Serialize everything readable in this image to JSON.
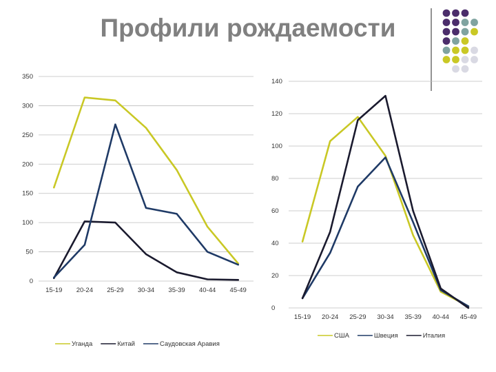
{
  "slide": {
    "title": "Профили рождаемости",
    "decor_colors": [
      "#4b2d6b",
      "#7fa3a0",
      "#c9c825",
      "#d9d9e3"
    ]
  },
  "chart_data": [
    {
      "type": "line",
      "categories": [
        "15-19",
        "20-24",
        "25-29",
        "30-34",
        "35-39",
        "40-44",
        "45-49"
      ],
      "ylim": [
        0,
        350
      ],
      "yticks": [
        "0",
        "50",
        "100",
        "150",
        "200",
        "250",
        "300",
        "350"
      ],
      "grid": true,
      "legend_position": "bottom-left",
      "series": [
        {
          "name": "Уганда",
          "color": "#c9c825",
          "values": [
            160,
            314,
            309,
            262,
            190,
            93,
            30
          ]
        },
        {
          "name": "Китай",
          "color": "#1a1a2e",
          "values": [
            5,
            102,
            100,
            46,
            15,
            3,
            2
          ]
        },
        {
          "name": "Саудовская Аравия",
          "color": "#1f3a66",
          "values": [
            6,
            62,
            268,
            125,
            115,
            50,
            28
          ]
        }
      ]
    },
    {
      "type": "line",
      "categories": [
        "15-19",
        "20-24",
        "25-29",
        "30-34",
        "35-39",
        "40-44",
        "45-49"
      ],
      "ylim": [
        0,
        140
      ],
      "yticks": [
        "0",
        "20",
        "40",
        "60",
        "80",
        "100",
        "120",
        "140"
      ],
      "grid": true,
      "legend_position": "bottom-right",
      "series": [
        {
          "name": "США",
          "color": "#c9c825",
          "values": [
            41,
            103,
            118,
            94,
            45,
            10,
            1
          ]
        },
        {
          "name": "Швеция",
          "color": "#1f3a66",
          "values": [
            6,
            34,
            75,
            93,
            53,
            11,
            1
          ]
        },
        {
          "name": "Италия",
          "color": "#1a1a2e",
          "values": [
            6,
            47,
            116,
            131,
            60,
            12,
            0
          ]
        }
      ]
    }
  ]
}
